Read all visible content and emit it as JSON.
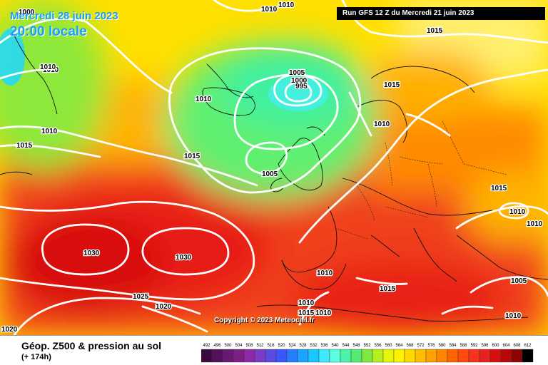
{
  "header": {
    "date_text": "Mercredi 28 juin 2023",
    "time_text": "20:00 locale",
    "run_text": "Run GFS 12 Z du Mercredi 21 juin 2023"
  },
  "footer": {
    "title": "Géop. Z500 & pression au sol",
    "subtitle": "(+ 174h)",
    "copyright": "Copyright © 2023 Meteociel.fr"
  },
  "legend": {
    "values": [
      "492",
      "496",
      "500",
      "504",
      "508",
      "512",
      "516",
      "520",
      "524",
      "528",
      "532",
      "536",
      "540",
      "544",
      "548",
      "552",
      "556",
      "560",
      "564",
      "568",
      "572",
      "576",
      "580",
      "584",
      "588",
      "592",
      "596",
      "600",
      "604",
      "608",
      "612"
    ],
    "colors": [
      "#3a0a3e",
      "#55105a",
      "#6b1874",
      "#7e1f86",
      "#8e2aa8",
      "#7a3cc4",
      "#5a4ae0",
      "#3b55ff",
      "#2a7cff",
      "#1aa3ff",
      "#19c8ff",
      "#3ee8ff",
      "#5affe0",
      "#4cf2a8",
      "#55ea70",
      "#7fe840",
      "#b4f020",
      "#e6f60c",
      "#fff200",
      "#ffd800",
      "#ffbe00",
      "#ffa200",
      "#ff8400",
      "#ff6400",
      "#ff4a10",
      "#f8321c",
      "#e82020",
      "#d41010",
      "#b60808",
      "#8c0404",
      "#000000"
    ]
  },
  "pressure_labels": [
    {
      "text": "1000"
    },
    {
      "text": "1010"
    },
    {
      "text": "1010"
    },
    {
      "text": "1010"
    },
    {
      "text": "1015"
    },
    {
      "text": "1010"
    },
    {
      "text": "1015"
    },
    {
      "text": "1005"
    },
    {
      "text": "1000"
    },
    {
      "text": "995"
    },
    {
      "text": "1010"
    },
    {
      "text": "1015"
    },
    {
      "text": "1005"
    },
    {
      "text": "1015"
    },
    {
      "text": "1010"
    },
    {
      "text": "1015"
    },
    {
      "text": "1010"
    },
    {
      "text": "1010"
    },
    {
      "text": "1030"
    },
    {
      "text": "1030"
    },
    {
      "text": "1025"
    },
    {
      "text": "1020"
    },
    {
      "text": "1020"
    },
    {
      "text": "1010"
    },
    {
      "text": "1015"
    },
    {
      "text": "1010"
    },
    {
      "text": "1015"
    },
    {
      "text": "1010"
    },
    {
      "text": "1005"
    },
    {
      "text": "1010"
    },
    {
      "text": "1010"
    }
  ]
}
